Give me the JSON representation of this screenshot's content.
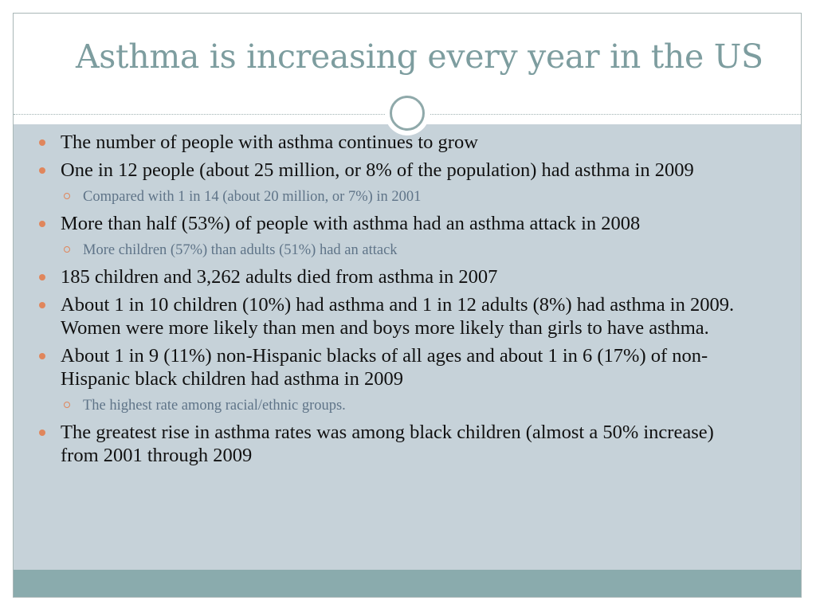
{
  "slide": {
    "title": "Asthma is increasing every year in the US",
    "bullets": [
      {
        "text": "The number of people with asthma continues to grow",
        "subs": []
      },
      {
        "text": "One in 12 people (about 25 million, or 8% of the population) had asthma in 2009",
        "subs": [
          "Compared with 1 in 14 (about 20 million, or 7%) in 2001"
        ]
      },
      {
        "text": "More than half (53%) of people with asthma had an asthma attack in 2008",
        "subs": [
          "More children (57%) than adults (51%) had an attack"
        ]
      },
      {
        "text": "185 children and 3,262 adults died from asthma in 2007",
        "subs": []
      },
      {
        "text": "About 1 in 10 children (10%) had asthma and 1 in 12 adults (8%) had asthma in 2009. Women were more likely than men and boys more likely than girls to have asthma.",
        "subs": []
      },
      {
        "text": "About 1 in 9 (11%) non-Hispanic blacks of all ages and about 1 in 6 (17%) of non-Hispanic black children had asthma in 2009",
        "subs": [
          "The highest rate among racial/ethnic groups."
        ]
      },
      {
        "text": "The greatest rise in asthma rates was among black children (almost a 50% increase) from 2001 through 2009",
        "subs": []
      }
    ]
  },
  "colors": {
    "title": "#7d9d9f",
    "content_background": "#c6d2d9",
    "footer_band": "#8aabad",
    "bullet_marker": "#e0865c",
    "sub_text": "#5f7488"
  },
  "icons": {
    "bullet": "filled-circle-bullet-icon",
    "sub_bullet": "hollow-circle-bullet-icon",
    "divider_ornament": "ring-divider-icon"
  }
}
